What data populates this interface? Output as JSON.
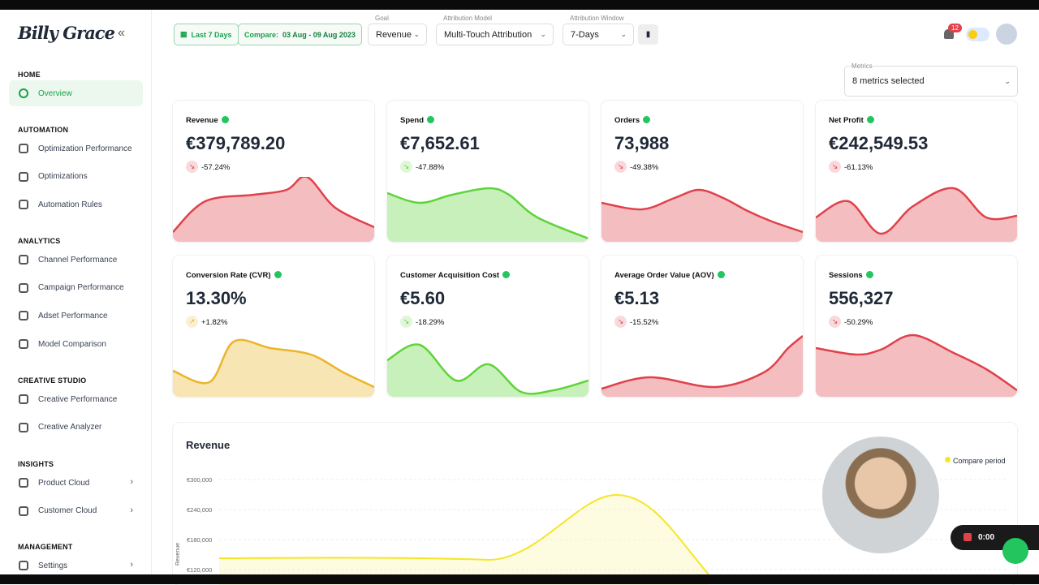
{
  "sidebar": {
    "logo": "Billy Grace",
    "sections": [
      {
        "title": "HOME",
        "items": [
          "Overview"
        ]
      },
      {
        "title": "AUTOMATION",
        "items": [
          "Optimization Performance",
          "Optimizations",
          "Automation Rules"
        ]
      },
      {
        "title": "ANALYTICS",
        "items": [
          "Channel Performance",
          "Campaign Performance",
          "Adset Performance",
          "Model Comparison"
        ]
      },
      {
        "title": "CREATIVE STUDIO",
        "items": [
          "Creative Performance",
          "Creative Analyzer"
        ]
      },
      {
        "title": "INSIGHTS",
        "items": [
          "Product Cloud",
          "Customer Cloud"
        ]
      },
      {
        "title": "MANAGEMENT",
        "items": [
          "Settings"
        ]
      }
    ]
  },
  "header": {
    "date_button": "Last 7 Days",
    "compare_label": "Compare:",
    "compare_range": "03 Aug - 09 Aug 2023",
    "goal": {
      "label": "Goal",
      "value": "Revenue"
    },
    "attribution_model": {
      "label": "Attribution Model",
      "value": "Multi-Touch Attribution"
    },
    "attribution_window": {
      "label": "Attribution Window",
      "value": "7-Days"
    },
    "notifications": "12"
  },
  "metrics_select": {
    "label": "Metrics",
    "value": "8 metrics selected"
  },
  "cards": [
    {
      "label": "Revenue",
      "value": "€379,789.20",
      "change": "-57.24%",
      "color": "#e0414b"
    },
    {
      "label": "Spend",
      "value": "€7,652.61",
      "change": "-47.88%",
      "color": "#5fd43a"
    },
    {
      "label": "Orders",
      "value": "73,988",
      "change": "-49.38%",
      "color": "#e0414b"
    },
    {
      "label": "Net Profit",
      "value": "€242,549.53",
      "change": "-61.13%",
      "color": "#e0414b"
    },
    {
      "label": "Conversion Rate (CVR)",
      "value": "13.30%",
      "change": "+1.82%",
      "color": "#eab528"
    },
    {
      "label": "Customer Acquisition Cost",
      "value": "€5.60",
      "change": "-18.29%",
      "color": "#5fd43a"
    },
    {
      "label": "Average Order Value (AOV)",
      "value": "€5.13",
      "change": "-15.52%",
      "color": "#e0414b"
    },
    {
      "label": "Sessions",
      "value": "556,327",
      "change": "-50.29%",
      "color": "#e0414b"
    }
  ],
  "revenue_chart": {
    "title": "Revenue",
    "legend": "Compare period",
    "axis_label": "Revenue",
    "ylim": [
      120000,
      300000
    ],
    "yticks": [
      {
        "value": 300000,
        "label": "€300,000"
      },
      {
        "value": 240000,
        "label": "€240,000"
      },
      {
        "value": 180000,
        "label": "€180,000"
      },
      {
        "value": 120000,
        "label": "€120,000"
      }
    ]
  },
  "recorder": {
    "time": "0:00"
  }
}
